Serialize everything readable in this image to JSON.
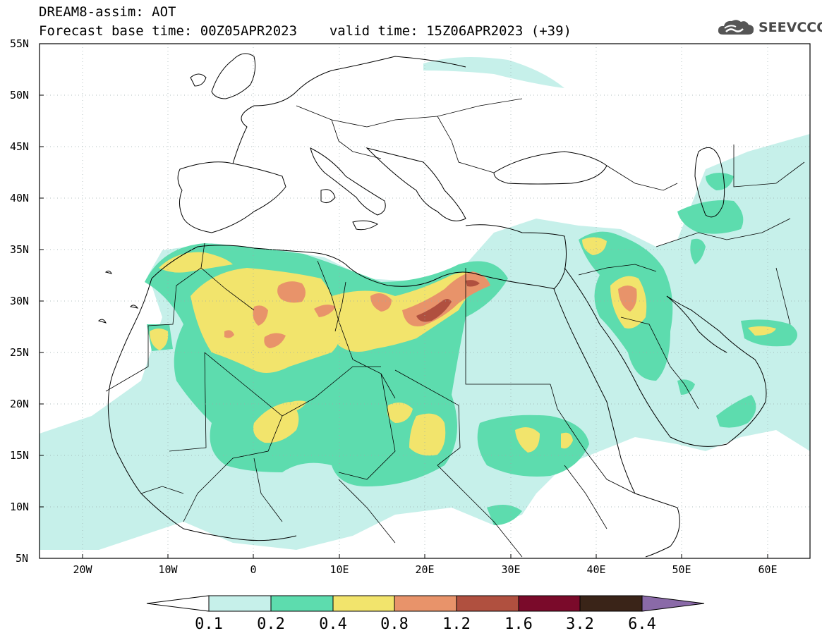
{
  "header": {
    "line1": "DREAM8-assim: AOT",
    "base_time": "Forecast base time: 00Z05APR2023",
    "valid_time": "valid time: 15Z06APR2023 (+39)"
  },
  "logo": {
    "text": "SEEVCCC",
    "icon": "cloud-icon"
  },
  "map": {
    "lat_labels": [
      "55N",
      "50N",
      "45N",
      "40N",
      "35N",
      "30N",
      "25N",
      "20N",
      "15N",
      "10N",
      "5N"
    ],
    "lon_labels": [
      "20W",
      "10W",
      "0",
      "10E",
      "20E",
      "30E",
      "40E",
      "50E",
      "60E"
    ],
    "lon_range": [
      -25,
      65
    ],
    "lat_range": [
      5,
      55
    ],
    "grid": "dotted"
  },
  "colorbar": {
    "labels": [
      "0.1",
      "0.2",
      "0.4",
      "0.8",
      "1.2",
      "1.6",
      "3.2",
      "6.4"
    ],
    "colors": [
      "#ffffff",
      "#c6f0ea",
      "#5ddcae",
      "#f2e46c",
      "#e8936a",
      "#b0503f",
      "#7a0a2a",
      "#3a2418",
      "#8a6aa8"
    ]
  },
  "colors": {
    "level_0_1": "#c6f0ea",
    "level_0_2": "#5ddcae",
    "level_0_4": "#f2e46c",
    "level_0_8": "#e8936a",
    "level_1_2": "#b0503f"
  }
}
